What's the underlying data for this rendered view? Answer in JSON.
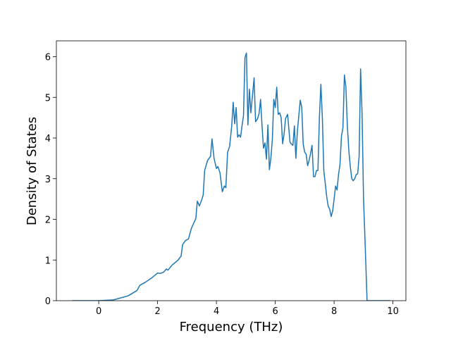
{
  "chart_data": {
    "type": "line",
    "xlabel": "Frequency (THz)",
    "ylabel": "Density of States",
    "xlim": [
      -1.44,
      10.44
    ],
    "ylim": [
      0,
      6.39
    ],
    "xticks": [
      0,
      2,
      4,
      6,
      8,
      10
    ],
    "yticks": [
      0,
      1,
      2,
      3,
      4,
      5,
      6
    ],
    "series": [
      {
        "color": "#1f77b4",
        "x": [
          -0.9,
          0,
          0.5,
          1.0,
          1.3,
          1.4,
          1.6,
          1.8,
          2.0,
          2.1,
          2.2,
          2.3,
          2.35,
          2.5,
          2.7,
          2.8,
          2.85,
          2.95,
          3.05,
          3.15,
          3.3,
          3.35,
          3.42,
          3.5,
          3.55,
          3.6,
          3.7,
          3.8,
          3.85,
          3.92,
          4.0,
          4.05,
          4.12,
          4.2,
          4.27,
          4.32,
          4.38,
          4.45,
          4.52,
          4.57,
          4.62,
          4.67,
          4.72,
          4.77,
          4.82,
          4.87,
          4.92,
          4.97,
          5.02,
          5.07,
          5.12,
          5.17,
          5.22,
          5.28,
          5.33,
          5.4,
          5.45,
          5.5,
          5.55,
          5.6,
          5.65,
          5.7,
          5.75,
          5.8,
          5.85,
          5.9,
          5.95,
          6.0,
          6.05,
          6.1,
          6.15,
          6.2,
          6.25,
          6.3,
          6.35,
          6.42,
          6.5,
          6.55,
          6.6,
          6.65,
          6.7,
          6.75,
          6.8,
          6.85,
          6.9,
          6.95,
          7.0,
          7.05,
          7.1,
          7.15,
          7.2,
          7.25,
          7.3,
          7.35,
          7.4,
          7.45,
          7.5,
          7.55,
          7.6,
          7.65,
          7.75,
          7.8,
          7.85,
          7.9,
          7.95,
          8.0,
          8.05,
          8.1,
          8.15,
          8.2,
          8.25,
          8.3,
          8.35,
          8.4,
          8.45,
          8.5,
          8.55,
          8.6,
          8.65,
          8.7,
          8.75,
          8.8,
          8.85,
          8.9,
          8.95,
          9.0,
          9.05,
          9.12,
          9.9
        ],
        "values": [
          0,
          0,
          0.02,
          0.12,
          0.25,
          0.38,
          0.46,
          0.56,
          0.68,
          0.67,
          0.7,
          0.78,
          0.75,
          0.88,
          1.0,
          1.1,
          1.38,
          1.48,
          1.52,
          1.78,
          2.02,
          2.45,
          2.33,
          2.48,
          2.6,
          3.2,
          3.45,
          3.55,
          3.98,
          3.5,
          3.25,
          3.3,
          3.15,
          2.68,
          2.82,
          2.78,
          3.65,
          3.8,
          4.3,
          4.88,
          4.35,
          4.75,
          4.02,
          4.08,
          4.02,
          4.3,
          4.55,
          5.98,
          6.09,
          4.32,
          5.2,
          4.62,
          5.0,
          5.48,
          4.4,
          4.48,
          4.6,
          4.95,
          4.3,
          3.75,
          3.88,
          3.48,
          4.32,
          3.22,
          3.5,
          3.95,
          4.95,
          4.75,
          5.25,
          4.58,
          4.62,
          4.5,
          3.86,
          4.1,
          4.48,
          4.58,
          3.9,
          3.85,
          3.82,
          4.3,
          3.5,
          4.15,
          4.55,
          4.93,
          4.75,
          3.85,
          3.65,
          3.6,
          3.32,
          3.45,
          3.62,
          3.82,
          3.05,
          3.05,
          3.2,
          3.2,
          4.5,
          5.32,
          4.5,
          3.2,
          2.55,
          2.32,
          2.25,
          2.07,
          2.2,
          2.5,
          2.82,
          2.72,
          3.1,
          3.35,
          4.05,
          4.25,
          5.55,
          5.25,
          4.3,
          3.7,
          3.3,
          3.0,
          2.95,
          3.0,
          3.1,
          3.12,
          3.55,
          5.7,
          4.6,
          2.5,
          1.5,
          0,
          0
        ]
      }
    ]
  }
}
